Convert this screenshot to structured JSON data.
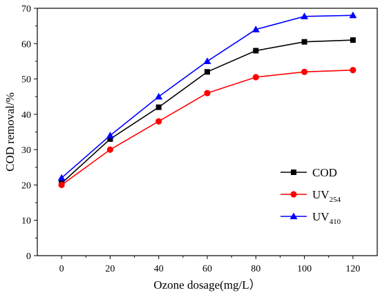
{
  "chart_data": {
    "type": "line",
    "xlabel": "Ozone dosage(mg/L）",
    "ylabel": "COD removal/%",
    "x": [
      0,
      20,
      40,
      60,
      80,
      100,
      120
    ],
    "xlim": [
      -10,
      130
    ],
    "ylim": [
      0,
      70
    ],
    "xticks": [
      0,
      20,
      40,
      60,
      80,
      100,
      120
    ],
    "yticks": [
      0,
      10,
      20,
      30,
      40,
      50,
      60,
      70
    ],
    "grid": false,
    "legend_position": "right",
    "series": [
      {
        "name": "COD",
        "sub": "",
        "color": "#000000",
        "marker": "square",
        "values": [
          20.5,
          33,
          42,
          52,
          58,
          60.5,
          61
        ]
      },
      {
        "name": "UV",
        "sub": "254",
        "color": "#ff0000",
        "marker": "circle",
        "values": [
          20,
          30,
          38,
          46,
          50.5,
          52,
          52.5
        ]
      },
      {
        "name": "UV",
        "sub": "410",
        "color": "#0000ff",
        "marker": "triangle",
        "values": [
          22,
          34,
          45,
          55,
          64,
          67.7,
          68
        ]
      }
    ]
  }
}
